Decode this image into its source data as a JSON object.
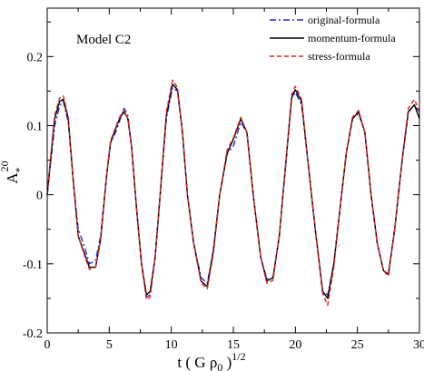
{
  "chart_data": {
    "type": "line",
    "title": "",
    "annotation": "Model C2",
    "xlabel": {
      "base": "t ( G ρ",
      "sub": "0",
      "close": " )",
      "sup": "1/2"
    },
    "ylabel": {
      "base": "A",
      "sub": "*",
      "sup": "20"
    },
    "xlim": [
      0,
      30
    ],
    "ylim": [
      -0.2,
      0.27
    ],
    "xticks": [
      0,
      5,
      10,
      15,
      20,
      25,
      30
    ],
    "xtick_labels": [
      "0",
      "5",
      "10",
      "15",
      "20",
      "25",
      "30"
    ],
    "yticks": [
      -0.2,
      -0.1,
      0,
      0.1,
      0.2
    ],
    "ytick_labels": [
      "-0.2",
      "-0.1",
      "0",
      "0.1",
      "0.2"
    ],
    "grid": false,
    "legend_position": "top-right",
    "series": [
      {
        "name": "original-formula",
        "color": "#1f2fd6",
        "dash": "dash-dot",
        "x": [
          0,
          0.3,
          0.6,
          1.0,
          1.3,
          1.7,
          2.1,
          2.5,
          3.0,
          3.4,
          3.9,
          4.3,
          4.8,
          5.1,
          5.5,
          5.9,
          6.2,
          6.5,
          6.8,
          7.2,
          7.6,
          8.0,
          8.3,
          8.7,
          9.1,
          9.6,
          10.1,
          10.5,
          10.9,
          11.3,
          11.8,
          12.4,
          12.9,
          13.4,
          13.9,
          14.5,
          15.0,
          15.6,
          16.1,
          16.6,
          17.2,
          17.7,
          18.2,
          18.7,
          19.2,
          19.7,
          20.0,
          20.5,
          21.0,
          21.6,
          22.2,
          22.6,
          23.1,
          23.6,
          24.1,
          24.6,
          25.1,
          25.6,
          26.1,
          26.6,
          27.1,
          27.5,
          28.0,
          28.6,
          29.1,
          29.6,
          30.0
        ],
        "y": [
          0.0,
          0.05,
          0.1,
          0.129,
          0.135,
          0.105,
          0.02,
          -0.05,
          -0.075,
          -0.1,
          -0.095,
          -0.06,
          0.03,
          0.075,
          0.09,
          0.11,
          0.125,
          0.115,
          0.07,
          -0.02,
          -0.1,
          -0.148,
          -0.145,
          -0.09,
          0.0,
          0.11,
          0.155,
          0.15,
          0.09,
          0.0,
          -0.07,
          -0.12,
          -0.128,
          -0.08,
          0.0,
          0.06,
          0.07,
          0.105,
          0.09,
          0.0,
          -0.09,
          -0.122,
          -0.12,
          -0.06,
          0.04,
          0.14,
          0.148,
          0.13,
          0.05,
          -0.05,
          -0.14,
          -0.145,
          -0.1,
          -0.02,
          0.06,
          0.11,
          0.118,
          0.09,
          0.0,
          -0.07,
          -0.11,
          -0.115,
          -0.05,
          0.05,
          0.12,
          0.13,
          0.12
        ]
      },
      {
        "name": "momentum-formula",
        "color": "#000000",
        "dash": "solid",
        "x": [
          0,
          0.3,
          0.6,
          1.0,
          1.3,
          1.7,
          2.1,
          2.5,
          3.0,
          3.4,
          3.9,
          4.3,
          4.8,
          5.1,
          5.5,
          5.9,
          6.2,
          6.5,
          6.8,
          7.2,
          7.6,
          8.0,
          8.3,
          8.7,
          9.1,
          9.6,
          10.1,
          10.5,
          10.9,
          11.3,
          11.8,
          12.4,
          12.9,
          13.4,
          13.9,
          14.5,
          15.0,
          15.6,
          16.1,
          16.6,
          17.2,
          17.7,
          18.2,
          18.7,
          19.2,
          19.7,
          20.0,
          20.5,
          21.0,
          21.6,
          22.2,
          22.6,
          23.1,
          23.6,
          24.1,
          24.6,
          25.1,
          25.6,
          26.1,
          26.6,
          27.1,
          27.5,
          28.0,
          28.6,
          29.1,
          29.6,
          30.0
        ],
        "y": [
          0.0,
          0.055,
          0.11,
          0.135,
          0.138,
          0.11,
          0.02,
          -0.06,
          -0.085,
          -0.105,
          -0.105,
          -0.065,
          0.03,
          0.075,
          0.095,
          0.113,
          0.12,
          0.11,
          0.07,
          -0.02,
          -0.1,
          -0.145,
          -0.14,
          -0.09,
          0.0,
          0.115,
          0.16,
          0.152,
          0.09,
          0.0,
          -0.07,
          -0.125,
          -0.133,
          -0.08,
          0.0,
          0.06,
          0.08,
          0.11,
          0.09,
          0.0,
          -0.09,
          -0.125,
          -0.12,
          -0.06,
          0.04,
          0.14,
          0.152,
          0.135,
          0.05,
          -0.05,
          -0.14,
          -0.15,
          -0.1,
          -0.02,
          0.06,
          0.11,
          0.12,
          0.09,
          0.0,
          -0.07,
          -0.11,
          -0.115,
          -0.05,
          0.05,
          0.12,
          0.13,
          0.11
        ]
      },
      {
        "name": "stress-formula",
        "color": "#e8201c",
        "dash": "dashed",
        "x": [
          0,
          0.3,
          0.6,
          1.0,
          1.3,
          1.7,
          2.1,
          2.5,
          3.0,
          3.4,
          3.9,
          4.3,
          4.8,
          5.1,
          5.5,
          5.9,
          6.2,
          6.5,
          6.8,
          7.2,
          7.6,
          8.0,
          8.3,
          8.7,
          9.1,
          9.6,
          10.1,
          10.5,
          10.9,
          11.3,
          11.8,
          12.4,
          12.9,
          13.4,
          13.9,
          14.5,
          15.0,
          15.6,
          16.1,
          16.6,
          17.2,
          17.7,
          18.2,
          18.7,
          19.2,
          19.7,
          20.0,
          20.5,
          21.0,
          21.6,
          22.2,
          22.6,
          23.1,
          23.6,
          24.1,
          24.6,
          25.1,
          25.6,
          26.1,
          26.6,
          27.1,
          27.5,
          28.0,
          28.6,
          29.1,
          29.6,
          30.0
        ],
        "y": [
          0.0,
          0.06,
          0.115,
          0.14,
          0.143,
          0.112,
          0.02,
          -0.06,
          -0.088,
          -0.108,
          -0.105,
          -0.065,
          0.03,
          0.078,
          0.097,
          0.115,
          0.122,
          0.11,
          0.07,
          -0.02,
          -0.1,
          -0.152,
          -0.148,
          -0.09,
          0.0,
          0.12,
          0.166,
          0.155,
          0.09,
          0.0,
          -0.07,
          -0.128,
          -0.136,
          -0.085,
          0.0,
          0.065,
          0.082,
          0.112,
          0.09,
          0.0,
          -0.09,
          -0.128,
          -0.124,
          -0.06,
          0.04,
          0.145,
          0.157,
          0.138,
          0.05,
          -0.05,
          -0.143,
          -0.16,
          -0.105,
          -0.02,
          0.06,
          0.112,
          0.122,
          0.09,
          0.0,
          -0.07,
          -0.11,
          -0.118,
          -0.05,
          0.05,
          0.125,
          0.138,
          0.12
        ]
      }
    ]
  }
}
